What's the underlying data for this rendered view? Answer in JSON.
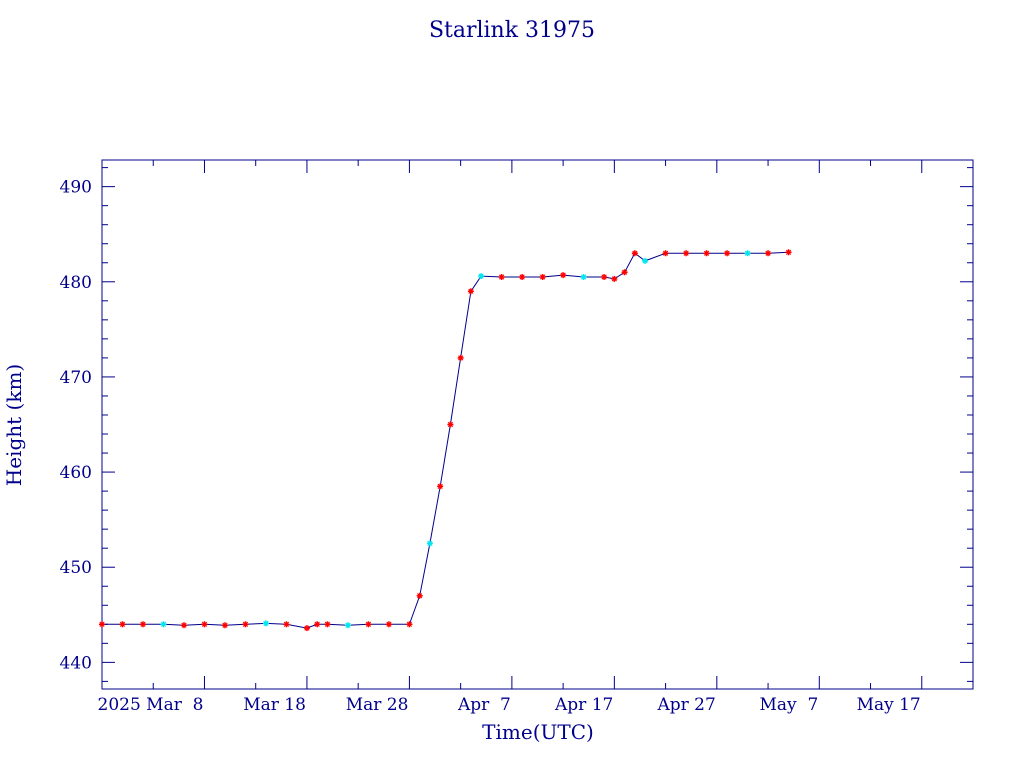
{
  "colors": {
    "axis": "#00008b",
    "line": "#00008b",
    "marker_primary": "#ff0000",
    "marker_secondary": "#00e5ee",
    "background": "#ffffff"
  },
  "chart_data": {
    "type": "line",
    "title": "Starlink 31975",
    "xlabel": "Time(UTC)",
    "ylabel": "Height (km)",
    "xlim": [
      "2025-02-26",
      "2025-05-22"
    ],
    "ylim": [
      437.2,
      492.8
    ],
    "yticks": [
      440,
      450,
      460,
      470,
      480,
      490
    ],
    "ytick_labels": [
      "440",
      "450",
      "460",
      "470",
      "480",
      "490"
    ],
    "xticks": [
      "2025-03-08",
      "2025-03-18",
      "2025-03-28",
      "2025-04-07",
      "2025-04-17",
      "2025-04-27",
      "2025-05-07",
      "2025-05-17"
    ],
    "xtick_labels": [
      "2025 Mar  8",
      "Mar 18",
      "Mar 28",
      "Apr  7",
      "Apr 17",
      "Apr 27",
      "May  7",
      "May 17"
    ],
    "grid": false,
    "series": [
      {
        "x": [
          "2025-02-26",
          "2025-02-28",
          "2025-03-02",
          "2025-03-04",
          "2025-03-06",
          "2025-03-08",
          "2025-03-10",
          "2025-03-12",
          "2025-03-14",
          "2025-03-16",
          "2025-03-18",
          "2025-03-19",
          "2025-03-20",
          "2025-03-22",
          "2025-03-24",
          "2025-03-26",
          "2025-03-28",
          "2025-03-29",
          "2025-03-30",
          "2025-03-31",
          "2025-04-01",
          "2025-04-02",
          "2025-04-03",
          "2025-04-04",
          "2025-04-06",
          "2025-04-08",
          "2025-04-10",
          "2025-04-12",
          "2025-04-14",
          "2025-04-16",
          "2025-04-17",
          "2025-04-18",
          "2025-04-19",
          "2025-04-20",
          "2025-04-22",
          "2025-04-24",
          "2025-04-26",
          "2025-04-28",
          "2025-04-30",
          "2025-05-02",
          "2025-05-04"
        ],
        "y": [
          444.0,
          444.0,
          444.0,
          444.0,
          443.9,
          444.0,
          443.9,
          444.0,
          444.1,
          444.0,
          443.6,
          444.0,
          444.0,
          443.9,
          444.0,
          444.0,
          444.0,
          447.0,
          452.5,
          458.5,
          465.0,
          472.0,
          479.0,
          480.6,
          480.5,
          480.5,
          480.5,
          480.7,
          480.5,
          480.5,
          480.3,
          481.0,
          483.0,
          482.2,
          483.0,
          483.0,
          483.0,
          483.0,
          483.0,
          483.0,
          483.1
        ]
      }
    ]
  }
}
